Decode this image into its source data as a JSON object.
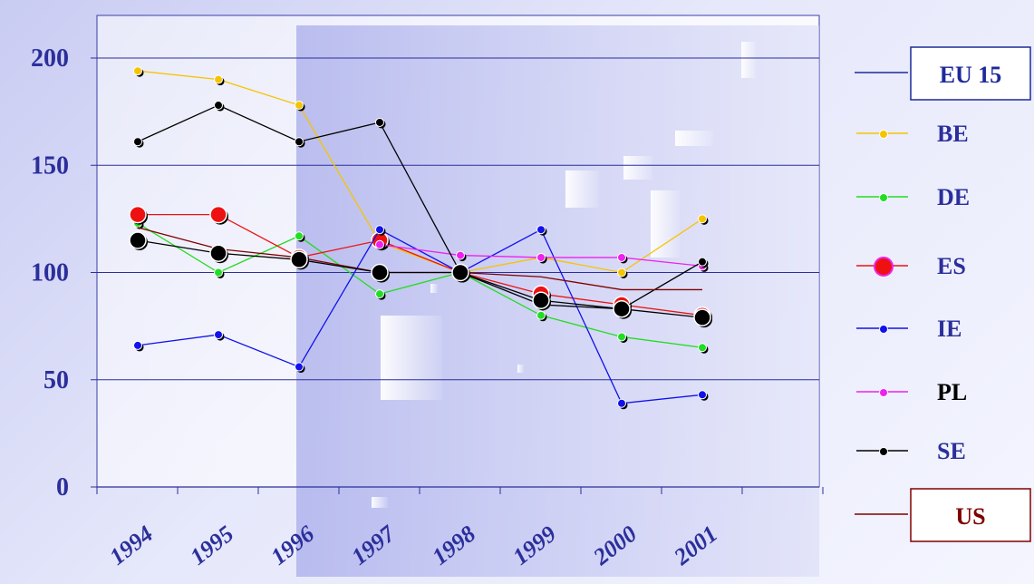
{
  "chart_data": {
    "type": "line",
    "x": [
      "1994",
      "1995",
      "1996",
      "1997",
      "1998",
      "1999",
      "2000",
      "2001"
    ],
    "ylim": [
      0,
      200
    ],
    "yticks": [
      0,
      50,
      100,
      150,
      200
    ],
    "grid": true,
    "legend_position": "right",
    "series": [
      {
        "name": "EU 15",
        "color": "#1c2a9a",
        "marker": "none",
        "values": [
          null,
          null,
          null,
          null,
          100,
          null,
          null,
          null
        ]
      },
      {
        "name": "BE",
        "color": "#f5c400",
        "marker": "small",
        "values": [
          194,
          190,
          178,
          114,
          100,
          107,
          100,
          125
        ]
      },
      {
        "name": "DE",
        "color": "#22dd22",
        "marker": "small",
        "values": [
          123,
          100,
          117,
          90,
          100,
          80,
          70,
          65
        ]
      },
      {
        "name": "ES",
        "color": "#ee1111",
        "marker": "large",
        "values": [
          127,
          127,
          107,
          115,
          100,
          90,
          85,
          80
        ]
      },
      {
        "name": "IE",
        "color": "#1111ee",
        "marker": "small",
        "values": [
          66,
          71,
          56,
          120,
          100,
          120,
          39,
          43
        ]
      },
      {
        "name": "PL",
        "color": "#ee22ee",
        "marker": "small",
        "values": [
          null,
          null,
          null,
          113,
          108,
          107,
          107,
          103
        ]
      },
      {
        "name": "SE",
        "color": "#000000",
        "marker": "small",
        "values": [
          161,
          178,
          161,
          170,
          100,
          85,
          83,
          105
        ]
      },
      {
        "name": "US",
        "color": "#800000",
        "marker": "none",
        "values": [
          121,
          111,
          107,
          100,
          100,
          98,
          92,
          92
        ]
      },
      {
        "name": "",
        "color": "#000000",
        "marker": "large",
        "values": [
          115,
          109,
          106,
          100,
          100,
          87,
          83,
          79
        ]
      }
    ],
    "legend": [
      {
        "label": "EU 15",
        "color": "#1c2a9a",
        "text_color": "#1c2a9a",
        "boxed": true
      },
      {
        "label": "BE",
        "color": "#f5c400",
        "text_color": "#2b2f9b",
        "boxed": false
      },
      {
        "label": "DE",
        "color": "#22dd22",
        "text_color": "#2b2f9b",
        "boxed": false
      },
      {
        "label": "ES",
        "color": "#ee1111",
        "text_color": "#2b2f9b",
        "boxed": false
      },
      {
        "label": "IE",
        "color": "#1111ee",
        "text_color": "#2b2f9b",
        "boxed": false
      },
      {
        "label": "PL",
        "color": "#ee22ee",
        "text_color": "#000000",
        "boxed": false
      },
      {
        "label": "SE",
        "color": "#000000",
        "text_color": "#2b2f9b",
        "boxed": false
      },
      {
        "label": "US",
        "color": "#800000",
        "text_color": "#800000",
        "boxed": true
      }
    ]
  }
}
